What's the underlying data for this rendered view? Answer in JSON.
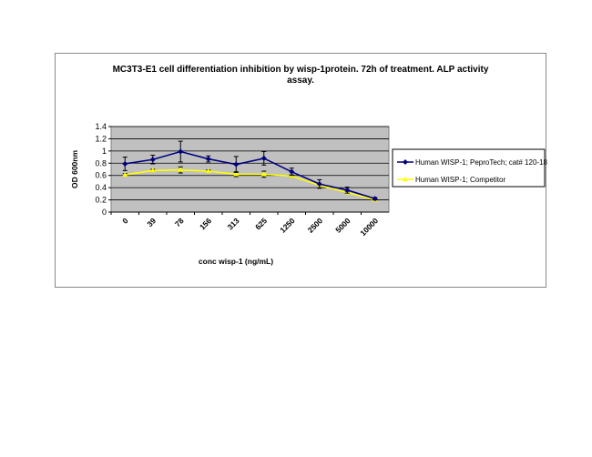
{
  "chart_data": {
    "type": "line",
    "title": "MC3T3-E1 cell differentiation inhibition by wisp-1protein. 72h of treatment. ALP activity assay.",
    "title_lines": [
      "MC3T3-E1 cell differentiation inhibition by wisp-1protein. 72h of treatment. ALP activity",
      "assay."
    ],
    "xlabel": "conc wisp-1 (ng/mL)",
    "ylabel": "OD 600nm",
    "ylim": [
      0,
      1.4
    ],
    "yticks": [
      "0",
      "0.2",
      "0.4",
      "0.6",
      "0.8",
      "1",
      "1.2",
      "1.4"
    ],
    "categories": [
      "0",
      "39",
      "78",
      "156",
      "313",
      "625",
      "1250",
      "2500",
      "5000",
      "10000"
    ],
    "grid": true,
    "legend": "right",
    "series": [
      {
        "name": "Human WISP-1; PeproTech; cat# 120-18",
        "color": "#000080",
        "marker": "diamond",
        "values": [
          0.79,
          0.86,
          0.99,
          0.87,
          0.78,
          0.88,
          0.66,
          0.46,
          0.36,
          0.22
        ],
        "errors": [
          0.11,
          0.07,
          0.17,
          0.05,
          0.13,
          0.11,
          0.06,
          0.07,
          0.05,
          0.02
        ]
      },
      {
        "name": "Human WISP-1; Competitor",
        "color": "#FFFF00",
        "marker": "triangle",
        "values": [
          0.61,
          0.68,
          0.69,
          0.67,
          0.62,
          0.62,
          0.59,
          0.44,
          0.32,
          0.2
        ],
        "errors": [
          0.02,
          0.02,
          0.05,
          0.02,
          0.04,
          0.05,
          0.02,
          0.02,
          0.02,
          0.01
        ]
      }
    ]
  }
}
